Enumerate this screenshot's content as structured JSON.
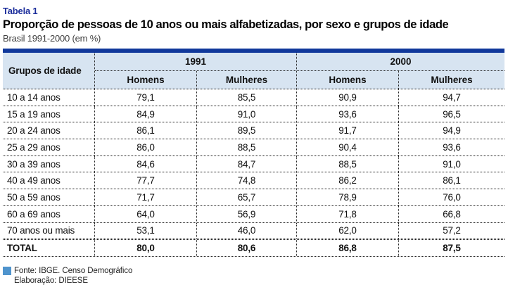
{
  "meta": {
    "label": "Tabela 1",
    "title": "Proporção de pessoas de 10 anos ou mais alfabetizadas, por sexo e grupos de idade",
    "subtitle": "Brasil 1991-2000 (em %)"
  },
  "table": {
    "row_header": "Grupos de idade",
    "year_groups": [
      "1991",
      "2000"
    ],
    "sub_headers": [
      "Homens",
      "Mulheres",
      "Homens",
      "Mulheres"
    ],
    "rows": [
      {
        "label": "10 a 14 anos",
        "values": [
          "79,1",
          "85,5",
          "90,9",
          "94,7"
        ]
      },
      {
        "label": "15 a 19 anos",
        "values": [
          "84,9",
          "91,0",
          "93,6",
          "96,5"
        ]
      },
      {
        "label": "20 a 24 anos",
        "values": [
          "86,1",
          "89,5",
          "91,7",
          "94,9"
        ]
      },
      {
        "label": "25 a 29 anos",
        "values": [
          "86,0",
          "88,5",
          "90,4",
          "93,6"
        ]
      },
      {
        "label": "30 a 39 anos",
        "values": [
          "84,6",
          "84,7",
          "88,5",
          "91,0"
        ]
      },
      {
        "label": "40 a 49 anos",
        "values": [
          "77,7",
          "74,8",
          "86,2",
          "86,1"
        ]
      },
      {
        "label": "50 a 59 anos",
        "values": [
          "71,7",
          "65,7",
          "78,9",
          "76,0"
        ]
      },
      {
        "label": "60 a 69 anos",
        "values": [
          "64,0",
          "56,9",
          "71,8",
          "66,8"
        ]
      },
      {
        "label": "70 anos ou mais",
        "values": [
          "53,1",
          "46,0",
          "62,0",
          "57,2"
        ]
      },
      {
        "label": "TOTAL",
        "values": [
          "80,0",
          "80,6",
          "86,8",
          "87,5"
        ],
        "total": true
      }
    ]
  },
  "footer": {
    "source": "Fonte: IBGE. Censo Demográfico",
    "elaboration": "Elaboração: DIEESE"
  },
  "colors": {
    "title_blue": "#1b2d9b",
    "table_top_bar": "#10389b",
    "header_bg": "#d7e4f1",
    "source_square": "#4f94cd"
  },
  "chart_data": {
    "type": "table",
    "title": "Proporção de pessoas de 10 anos ou mais alfabetizadas, por sexo e grupos de idade",
    "subtitle": "Brasil 1991-2000 (em %)",
    "unit": "%",
    "categories": [
      "10 a 14 anos",
      "15 a 19 anos",
      "20 a 24 anos",
      "25 a 29 anos",
      "30 a 39 anos",
      "40 a 49 anos",
      "50 a 59 anos",
      "60 a 69 anos",
      "70 anos ou mais",
      "TOTAL"
    ],
    "series": [
      {
        "name": "1991 Homens",
        "values": [
          79.1,
          84.9,
          86.1,
          86.0,
          84.6,
          77.7,
          71.7,
          64.0,
          53.1,
          80.0
        ]
      },
      {
        "name": "1991 Mulheres",
        "values": [
          85.5,
          91.0,
          89.5,
          88.5,
          84.7,
          74.8,
          65.7,
          56.9,
          46.0,
          80.6
        ]
      },
      {
        "name": "2000 Homens",
        "values": [
          90.9,
          93.6,
          91.7,
          90.4,
          88.5,
          86.2,
          78.9,
          71.8,
          62.0,
          86.8
        ]
      },
      {
        "name": "2000 Mulheres",
        "values": [
          94.7,
          96.5,
          94.9,
          93.6,
          91.0,
          86.1,
          76.0,
          66.8,
          57.2,
          87.5
        ]
      }
    ],
    "source": "Fonte: IBGE. Censo Demográfico",
    "elaboration": "Elaboração: DIEESE"
  }
}
